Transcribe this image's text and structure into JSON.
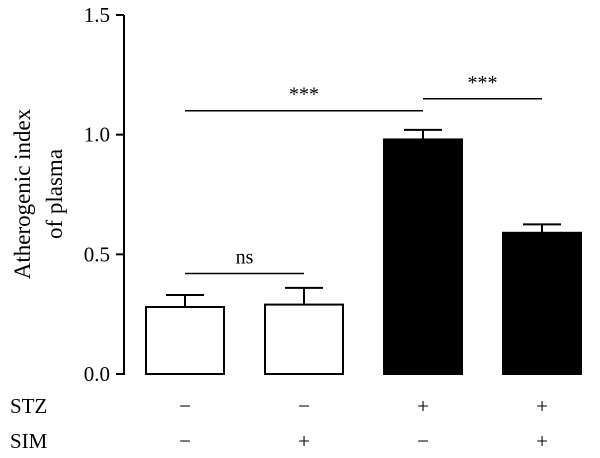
{
  "chart_data": {
    "type": "bar",
    "ylabel_lines": [
      "Atherogenic index",
      "of plasma"
    ],
    "ylim": [
      0,
      1.5
    ],
    "yticks": [
      "0.0",
      "0.5",
      "1.0",
      "1.5"
    ],
    "ytick_values": [
      0,
      0.5,
      1.0,
      1.5
    ],
    "groups": [
      {
        "value": 0.28,
        "error": 0.05,
        "fill": "#ffffff"
      },
      {
        "value": 0.29,
        "error": 0.07,
        "fill": "#ffffff"
      },
      {
        "value": 0.98,
        "error": 0.04,
        "fill": "#000000"
      },
      {
        "value": 0.59,
        "error": 0.035,
        "fill": "#000000"
      }
    ],
    "factor_rows": [
      {
        "label": "STZ",
        "signs": [
          "−",
          "−",
          "+",
          "+"
        ]
      },
      {
        "label": "SIM",
        "signs": [
          "−",
          "+",
          "−",
          "+"
        ]
      }
    ],
    "significance": [
      {
        "from": 0,
        "to": 1,
        "y": 0.42,
        "label": "ns"
      },
      {
        "from": 0,
        "to": 2,
        "y": 1.1,
        "label": "***"
      },
      {
        "from": 2,
        "to": 3,
        "y": 1.15,
        "label": "***"
      }
    ]
  }
}
